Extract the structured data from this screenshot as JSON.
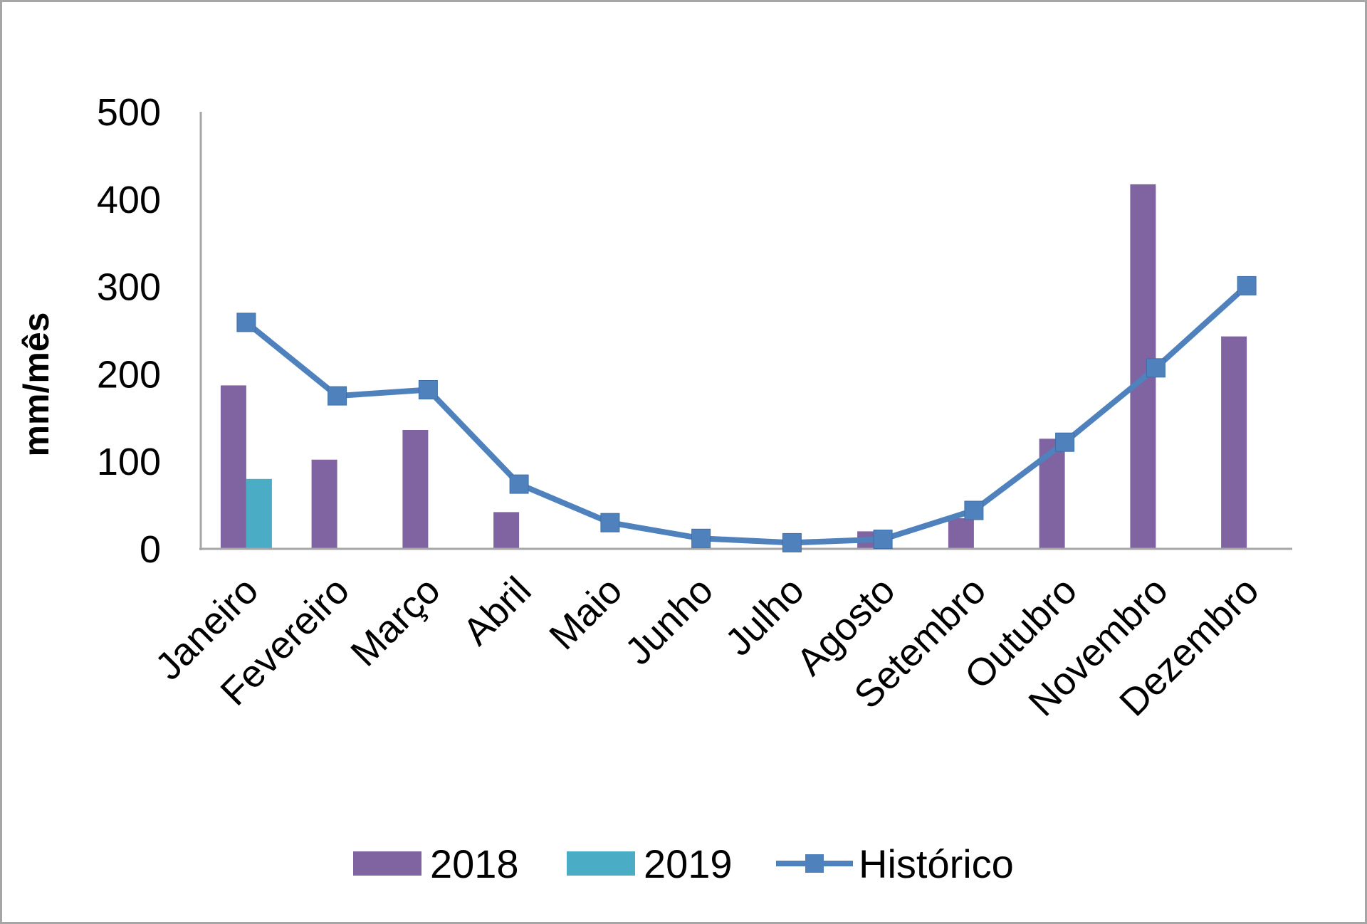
{
  "chart_data": {
    "type": "bar",
    "title": "",
    "xlabel": "",
    "ylabel": "mm/mês",
    "ylim": [
      0,
      500
    ],
    "yticks": [
      "0",
      "100",
      "200",
      "300",
      "400",
      "500"
    ],
    "grid": false,
    "legend_position": "bottom",
    "categories": [
      "Janeiro",
      "Fevereiro",
      "Março",
      "Abril",
      "Maio",
      "Junho",
      "Julho",
      "Agosto",
      "Setembro",
      "Outubro",
      "Novembro",
      "Dezembro"
    ],
    "series": [
      {
        "name": "2018",
        "kind": "bar",
        "color": "#8064a2",
        "values": [
          187,
          102,
          136,
          42,
          0,
          0,
          0,
          20,
          35,
          126,
          417,
          243
        ]
      },
      {
        "name": "2019",
        "kind": "bar",
        "color": "#4bacc6",
        "values": [
          80,
          null,
          null,
          null,
          null,
          null,
          null,
          null,
          null,
          null,
          null,
          null
        ]
      },
      {
        "name": "Histórico",
        "kind": "line",
        "marker": "square",
        "color": "#4f81bd",
        "values": [
          259,
          175,
          182,
          74,
          30,
          12,
          7,
          11,
          44,
          122,
          207,
          301
        ]
      }
    ]
  }
}
